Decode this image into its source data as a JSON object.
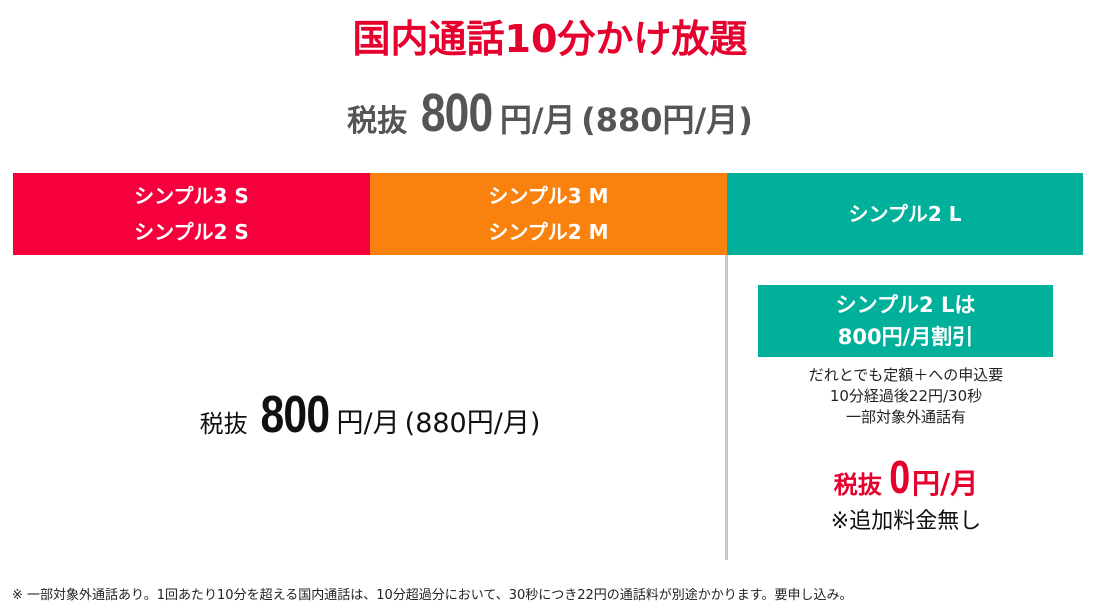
{
  "title": "国内通話10分かけ放題",
  "price_summary": {
    "prefix": "税抜",
    "amount": "800",
    "unit": "円/月",
    "tax_included": "(880円/月)"
  },
  "plans": [
    {
      "lines": [
        "シンプル3 S",
        "シンプル2 S"
      ]
    },
    {
      "lines": [
        "シンプル3 M",
        "シンプル2 M"
      ]
    },
    {
      "lines": [
        "シンプル2 L"
      ]
    }
  ],
  "standard_price": {
    "prefix": "税抜",
    "amount": "800",
    "unit": "円/月",
    "tax_included": "(880円/月)"
  },
  "l_plan_offer": {
    "badge_lines": [
      "シンプル2 Lは",
      "800円/月割引"
    ],
    "conditions": [
      "だれとでも定額＋への申込要",
      "10分経過後22円/30秒",
      "一部対象外通話有"
    ],
    "price": {
      "prefix": "税抜",
      "amount": "0",
      "unit": "円/月"
    },
    "note": "※追加料金無し"
  },
  "footnote": "※ 一部対象外通話あり。1回あたり10分を超える国内通話は、10分超過分において、30秒につき22円の通話料が別途かかります。要申し込み。"
}
